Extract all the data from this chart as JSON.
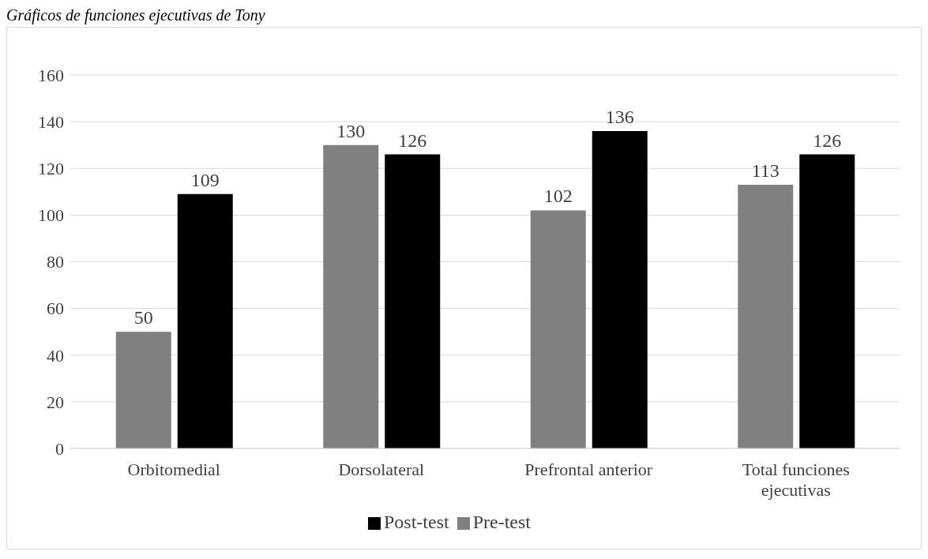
{
  "chart_data": {
    "type": "bar",
    "annotations": [
      "Gráficos de funciones ejecutivas de Tony"
    ],
    "categories": [
      "Orbitomedial",
      "Dorsolateral",
      "Prefrontal anterior",
      "Total funciones ejecutivas"
    ],
    "series": [
      {
        "name": "Pre-test",
        "color": "#808080",
        "values": [
          50,
          130,
          102,
          113
        ]
      },
      {
        "name": "Post-test",
        "color": "#000000",
        "values": [
          109,
          126,
          136,
          126
        ]
      }
    ],
    "ylim": [
      0,
      160
    ],
    "yticks": [
      0,
      20,
      40,
      60,
      80,
      100,
      120,
      140,
      160
    ],
    "grid": "y",
    "legend": "bottom",
    "data_labels": true
  }
}
